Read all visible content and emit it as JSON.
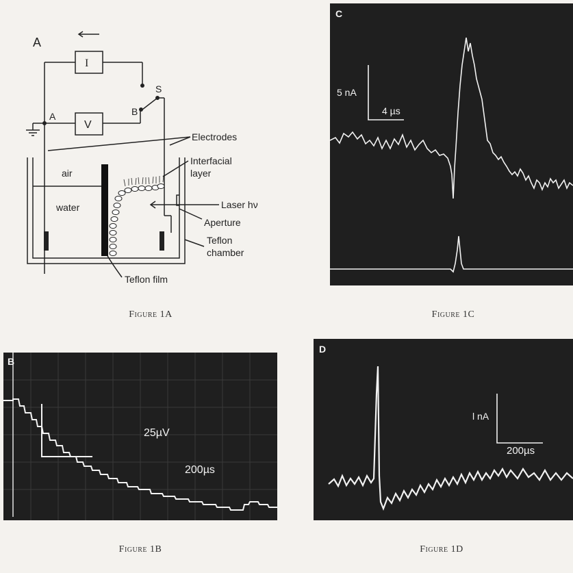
{
  "figure_a": {
    "letter": "A",
    "meter_i": "I",
    "meter_v": "V",
    "node_a": "A",
    "node_b": "B",
    "node_s": "S",
    "electrodes": "Electrodes",
    "air": "air",
    "water": "water",
    "interfacial": "Interfacial",
    "layer": "layer",
    "laser": "Laser hν",
    "aperture": "Aperture",
    "teflon": "Teflon",
    "chamber": "chamber",
    "teflon_film": "Teflon film",
    "caption": "Figure 1A"
  },
  "figure_b": {
    "letter": "B",
    "scale_v": "25µV",
    "scale_t": "200µs",
    "caption": "Figure 1B"
  },
  "figure_c": {
    "letter": "C",
    "scale_i": "5 nA",
    "scale_t": "4 µs",
    "caption": "Figure 1C"
  },
  "figure_d": {
    "letter": "D",
    "scale_i": "l nA",
    "scale_t": "200µs",
    "caption": "Figure 1D"
  },
  "colors": {
    "scope_bg": "#1f1f1f",
    "trace": "#f2f2f2",
    "grid": "#3a3a3a",
    "ink": "#222222"
  }
}
